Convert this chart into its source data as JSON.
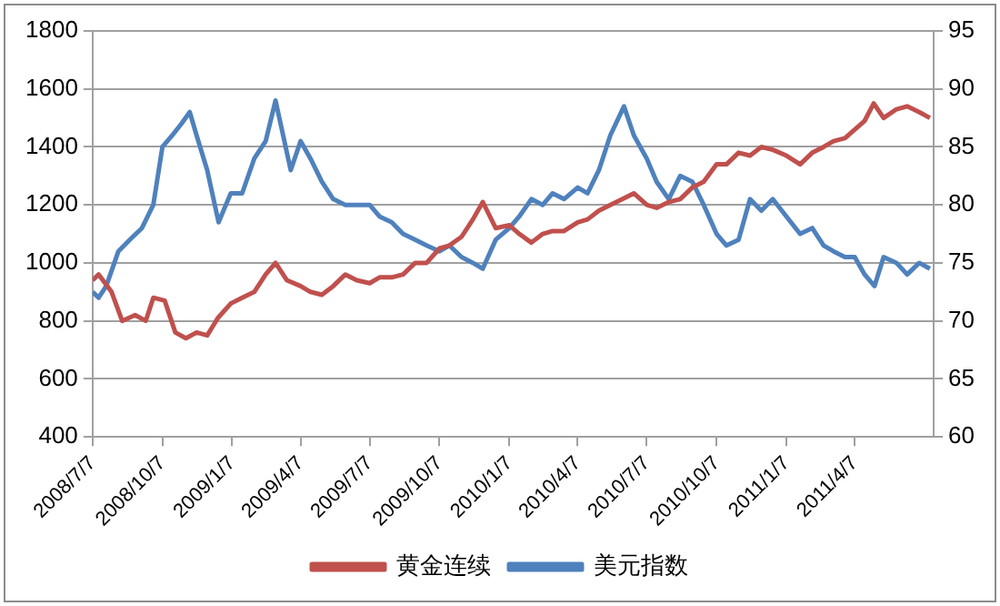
{
  "chart_data": {
    "type": "line",
    "legend": "bottom",
    "grid": "y",
    "marker": "none",
    "line_style": "solid",
    "xlim": [
      "2008-07-07",
      "2011-07-20"
    ],
    "xticks": [
      {
        "value": "2008-07-07",
        "label": "2008/7/7"
      },
      {
        "value": "2008-10-07",
        "label": "2008/10/7"
      },
      {
        "value": "2009-01-07",
        "label": "2009/1/7"
      },
      {
        "value": "2009-04-07",
        "label": "2009/4/7"
      },
      {
        "value": "2009-07-07",
        "label": "2009/7/7"
      },
      {
        "value": "2009-10-07",
        "label": "2009/10/7"
      },
      {
        "value": "2010-01-07",
        "label": "2010/1/7"
      },
      {
        "value": "2010-04-07",
        "label": "2010/4/7"
      },
      {
        "value": "2010-07-07",
        "label": "2010/7/7"
      },
      {
        "value": "2010-10-07",
        "label": "2010/10/7"
      },
      {
        "value": "2011-01-07",
        "label": "2011/1/7"
      },
      {
        "value": "2011-04-07",
        "label": "2011/4/7"
      }
    ],
    "ylim": [
      400,
      1800
    ],
    "yticks": [
      400,
      600,
      800,
      1000,
      1200,
      1400,
      1600,
      1800
    ],
    "y2lim": [
      60,
      95
    ],
    "y2ticks": [
      60,
      65,
      70,
      75,
      80,
      85,
      90,
      95
    ],
    "series": [
      {
        "name": "黄金连续",
        "color": "#c0504d",
        "x": [
          "2008-07-07",
          "2008-07-15",
          "2008-08-01",
          "2008-08-15",
          "2008-09-01",
          "2008-09-15",
          "2008-09-25",
          "2008-10-10",
          "2008-10-24",
          "2008-11-07",
          "2008-11-21",
          "2008-12-05",
          "2008-12-19",
          "2009-01-05",
          "2009-01-20",
          "2009-02-05",
          "2009-02-20",
          "2009-03-05",
          "2009-03-20",
          "2009-04-07",
          "2009-04-20",
          "2009-05-05",
          "2009-05-20",
          "2009-06-05",
          "2009-06-20",
          "2009-07-07",
          "2009-07-20",
          "2009-08-05",
          "2009-08-20",
          "2009-09-05",
          "2009-09-20",
          "2009-10-07",
          "2009-10-20",
          "2009-11-05",
          "2009-11-20",
          "2009-12-03",
          "2009-12-20",
          "2010-01-07",
          "2010-01-20",
          "2010-02-05",
          "2010-02-20",
          "2010-03-05",
          "2010-03-20",
          "2010-04-07",
          "2010-04-20",
          "2010-05-05",
          "2010-05-20",
          "2010-06-05",
          "2010-06-20",
          "2010-07-07",
          "2010-07-20",
          "2010-08-05",
          "2010-08-20",
          "2010-09-05",
          "2010-09-20",
          "2010-10-07",
          "2010-10-20",
          "2010-11-05",
          "2010-11-20",
          "2010-12-05",
          "2010-12-20",
          "2011-01-07",
          "2011-01-25",
          "2011-02-10",
          "2011-02-25",
          "2011-03-10",
          "2011-03-25",
          "2011-04-07",
          "2011-04-20",
          "2011-05-02",
          "2011-05-15",
          "2011-06-01",
          "2011-06-15",
          "2011-07-01",
          "2011-07-15"
        ],
        "values": [
          940,
          960,
          900,
          800,
          820,
          800,
          880,
          870,
          760,
          740,
          760,
          750,
          810,
          860,
          880,
          900,
          960,
          1000,
          940,
          920,
          900,
          890,
          920,
          960,
          940,
          930,
          950,
          950,
          960,
          1000,
          1000,
          1050,
          1060,
          1090,
          1150,
          1210,
          1120,
          1130,
          1100,
          1070,
          1100,
          1110,
          1110,
          1140,
          1150,
          1180,
          1200,
          1220,
          1240,
          1200,
          1190,
          1210,
          1220,
          1260,
          1280,
          1340,
          1340,
          1380,
          1370,
          1400,
          1390,
          1370,
          1340,
          1380,
          1400,
          1420,
          1430,
          1460,
          1490,
          1550,
          1500,
          1530,
          1540,
          1520,
          1500
        ]
      },
      {
        "name": "美元指数",
        "color": "#4f81bd",
        "axis": "y2",
        "x": [
          "2008-07-07",
          "2008-07-15",
          "2008-07-25",
          "2008-08-10",
          "2008-08-25",
          "2008-09-10",
          "2008-09-25",
          "2008-10-07",
          "2008-10-20",
          "2008-11-01",
          "2008-11-12",
          "2008-11-21",
          "2008-12-05",
          "2008-12-15",
          "2008-12-20",
          "2009-01-05",
          "2009-01-20",
          "2009-02-05",
          "2009-02-20",
          "2009-03-05",
          "2009-03-15",
          "2009-03-25",
          "2009-04-07",
          "2009-04-20",
          "2009-05-05",
          "2009-05-20",
          "2009-06-05",
          "2009-06-20",
          "2009-07-07",
          "2009-07-20",
          "2009-08-05",
          "2009-08-20",
          "2009-09-05",
          "2009-09-20",
          "2009-10-07",
          "2009-10-20",
          "2009-11-05",
          "2009-11-20",
          "2009-12-03",
          "2009-12-20",
          "2010-01-07",
          "2010-01-20",
          "2010-02-05",
          "2010-02-20",
          "2010-03-05",
          "2010-03-20",
          "2010-04-07",
          "2010-04-20",
          "2010-05-05",
          "2010-05-20",
          "2010-06-07",
          "2010-06-20",
          "2010-07-07",
          "2010-07-20",
          "2010-08-05",
          "2010-08-20",
          "2010-09-05",
          "2010-09-20",
          "2010-10-07",
          "2010-10-20",
          "2010-11-05",
          "2010-11-20",
          "2010-12-05",
          "2010-12-20",
          "2011-01-07",
          "2011-01-25",
          "2011-02-10",
          "2011-02-25",
          "2011-03-10",
          "2011-03-25",
          "2011-04-07",
          "2011-04-20",
          "2011-05-03",
          "2011-05-15",
          "2011-06-01",
          "2011-06-15",
          "2011-07-01",
          "2011-07-15"
        ],
        "values": [
          72.5,
          72,
          73,
          76,
          77,
          78,
          80,
          85,
          86,
          87,
          88,
          86,
          83,
          80,
          78.5,
          81,
          81,
          84,
          85.5,
          89,
          86,
          83,
          85.5,
          84,
          82,
          80.5,
          80,
          80,
          80,
          79,
          78.5,
          77.5,
          77,
          76.5,
          76,
          76.5,
          75.5,
          75,
          74.5,
          77,
          78,
          79,
          80.5,
          80,
          81,
          80.5,
          81.5,
          81,
          83,
          86,
          88.5,
          86,
          84,
          82,
          80.5,
          82.5,
          82,
          80,
          77.5,
          76.5,
          77,
          80.5,
          79.5,
          80.5,
          79,
          77.5,
          78,
          76.5,
          76,
          75.5,
          75.5,
          74,
          73,
          75.5,
          75,
          74,
          75,
          74.5
        ]
      }
    ]
  }
}
